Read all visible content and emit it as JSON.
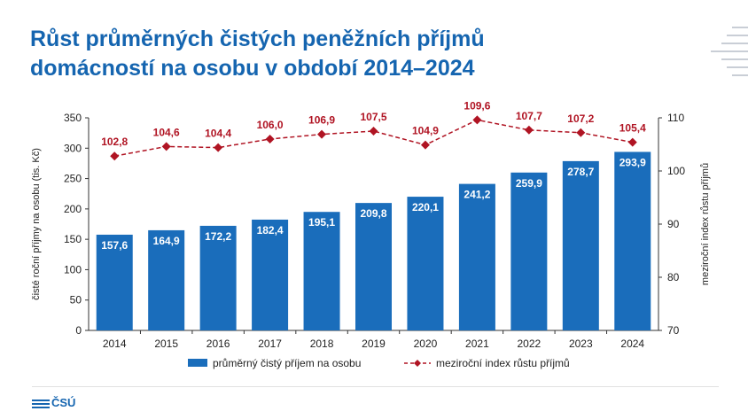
{
  "title": "Růst průměrných čistých peněžních příjmů domácností na osobu v období 2014–2024",
  "logo_text": "ČSÚ",
  "colors": {
    "title": "#1565b0",
    "bar": "#1a6dbb",
    "line": "#b01423"
  },
  "chart_data": {
    "type": "bar",
    "categories": [
      "2014",
      "2015",
      "2016",
      "2017",
      "2018",
      "2019",
      "2020",
      "2021",
      "2022",
      "2023",
      "2024"
    ],
    "series": [
      {
        "name": "průměrný čistý příjem na osobu",
        "type": "bar",
        "axis": "left",
        "values": [
          157.6,
          164.9,
          172.2,
          182.4,
          195.1,
          209.8,
          220.1,
          241.2,
          259.9,
          278.7,
          293.9
        ],
        "labels": [
          "157,6",
          "164,9",
          "172,2",
          "182,4",
          "195,1",
          "209,8",
          "220,1",
          "241,2",
          "259,9",
          "278,7",
          "293,9"
        ]
      },
      {
        "name": "meziroční index růstu příjmů",
        "type": "line",
        "axis": "right",
        "style": "dashed",
        "marker": "diamond",
        "values": [
          102.8,
          104.6,
          104.4,
          106.0,
          106.9,
          107.5,
          104.9,
          109.6,
          107.7,
          107.2,
          105.4
        ],
        "labels": [
          "102,8",
          "104,6",
          "104,4",
          "106,0",
          "106,9",
          "107,5",
          "104,9",
          "109,6",
          "107,7",
          "107,2",
          "105,4"
        ]
      }
    ],
    "ylabel_left": "čisté roční příjmy na osobu (tis. Kč)",
    "ylabel_right": "meziroční index růstu příjmů",
    "ylim_left": [
      0,
      350
    ],
    "yticks_left": [
      "0",
      "50",
      "100",
      "150",
      "200",
      "250",
      "300",
      "350"
    ],
    "ylim_right": [
      70,
      110
    ],
    "yticks_right": [
      "70",
      "80",
      "90",
      "100",
      "110"
    ],
    "legend_position": "bottom",
    "grid": false
  }
}
